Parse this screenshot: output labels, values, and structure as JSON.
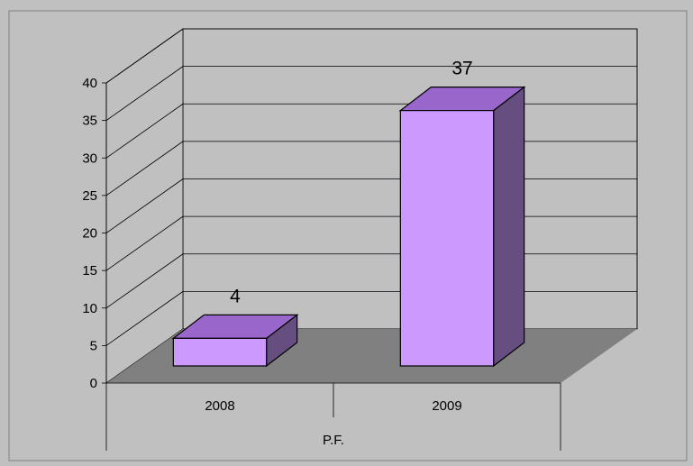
{
  "chart_data": {
    "type": "bar",
    "categories": [
      "2008",
      "2009"
    ],
    "series": [
      {
        "values": [
          4,
          37
        ]
      }
    ],
    "data_labels": [
      "4",
      "37"
    ],
    "xlabel": "P.F.",
    "ylabel": "",
    "title": "",
    "ylim": [
      0,
      40
    ],
    "yticks": [
      "0",
      "5",
      "10",
      "15",
      "20",
      "25",
      "30",
      "35",
      "40"
    ],
    "grid": true,
    "legend": "none",
    "style": "3d-column",
    "colors": {
      "bar_front": "#cc99ff",
      "bar_top": "#9966cc",
      "bar_side": "#664e80",
      "plot_background": "#c0c0c0",
      "floor": "#808080",
      "outer_background": "#c0c0c0"
    }
  }
}
